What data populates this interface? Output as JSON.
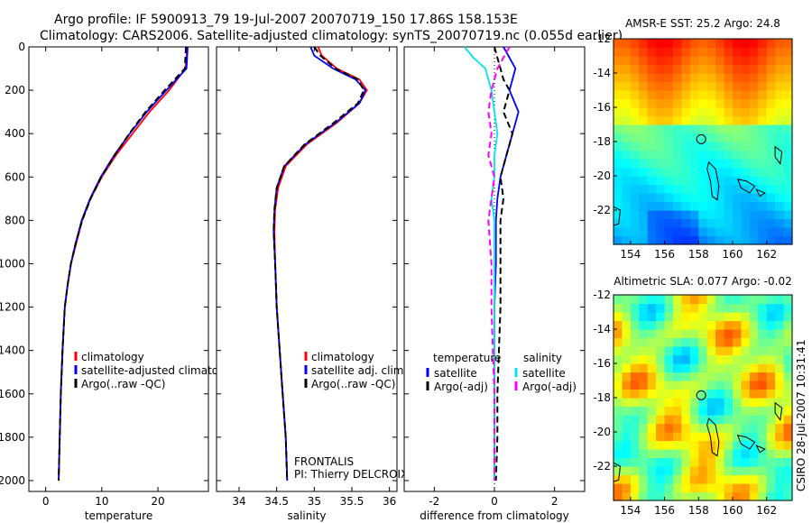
{
  "header": {
    "line1": "Argo profile: IF 5900913_79 19-Jul-2007 20070719_150 17.86S 158.153E",
    "line2": "Climatology: CARS2006. Satellite-adjusted climatology: synTS_20070719.nc (0.055d earlier)"
  },
  "side_note": "CSIRO 28-Jul-2007 10:31:41",
  "colors": {
    "red": "#ff0000",
    "blue": "#0000ff",
    "black": "#000000",
    "cyan": "#00e5ee",
    "magenta": "#ff00ff"
  },
  "chart_data": [
    {
      "type": "line",
      "xlabel": "temperature",
      "xlim": [
        -3,
        29
      ],
      "ylim": [
        0,
        2050
      ],
      "y_reversed": true,
      "xticks": [
        0,
        10,
        20
      ],
      "yticks": [
        0,
        200,
        400,
        600,
        800,
        1000,
        1200,
        1400,
        1600,
        1800,
        2000
      ],
      "legend": [
        "climatology",
        "satellite-adjusted climatology",
        "Argo(..raw -QC)"
      ],
      "series": [
        {
          "name": "climatology",
          "color": "red",
          "dash": "solid",
          "x": [
            25.2,
            25.1,
            24.9,
            22.0,
            18.5,
            15.5,
            12.5,
            10.0,
            8.0,
            6.5,
            5.5,
            4.5,
            3.9,
            3.4,
            3.0,
            2.7,
            2.5,
            2.3
          ],
          "y": [
            0,
            50,
            100,
            200,
            300,
            400,
            500,
            600,
            700,
            800,
            900,
            1000,
            1100,
            1200,
            1400,
            1600,
            1800,
            2000
          ]
        },
        {
          "name": "satellite-adjusted climatology",
          "color": "blue",
          "dash": "solid",
          "x": [
            25.3,
            25.2,
            25.1,
            21.5,
            18.0,
            15.0,
            12.2,
            9.8,
            7.9,
            6.4,
            5.4,
            4.5,
            3.9,
            3.4,
            3.0,
            2.7,
            2.5,
            2.3
          ],
          "y": [
            0,
            50,
            100,
            200,
            300,
            400,
            500,
            600,
            700,
            800,
            900,
            1000,
            1100,
            1200,
            1400,
            1600,
            1800,
            2000
          ]
        },
        {
          "name": "Argo(..raw -QC)",
          "color": "black",
          "dash": "dash",
          "x": [
            25.0,
            24.9,
            24.8,
            21.2,
            17.8,
            14.9,
            12.3,
            9.9,
            8.0,
            6.5,
            5.4,
            4.5,
            3.9,
            3.4,
            3.0,
            2.7,
            2.5,
            2.3
          ],
          "y": [
            0,
            50,
            100,
            200,
            300,
            400,
            500,
            600,
            700,
            800,
            900,
            1000,
            1100,
            1200,
            1400,
            1600,
            1800,
            2000
          ]
        }
      ]
    },
    {
      "type": "line",
      "xlabel": "salinity",
      "xlim": [
        33.7,
        36.1
      ],
      "ylim": [
        0,
        2050
      ],
      "y_reversed": true,
      "xticks": [
        34,
        34.5,
        35,
        35.5,
        36
      ],
      "legend": [
        "climatology",
        "satellite adj. clim.",
        "Argo(..raw -QC)"
      ],
      "annotations": [
        "FRONTALIS",
        "PI: Thierry DELCROIX"
      ],
      "series": [
        {
          "name": "climatology",
          "color": "red",
          "dash": "solid",
          "x": [
            35.05,
            35.1,
            35.3,
            35.6,
            35.7,
            35.6,
            35.3,
            34.9,
            34.62,
            34.52,
            34.48,
            34.47,
            34.48,
            34.5,
            34.54,
            34.58,
            34.62,
            34.64
          ],
          "y": [
            0,
            40,
            100,
            150,
            200,
            260,
            350,
            450,
            550,
            650,
            750,
            850,
            1000,
            1200,
            1400,
            1600,
            1800,
            2000
          ]
        },
        {
          "name": "satellite adj. clim.",
          "color": "blue",
          "dash": "solid",
          "x": [
            34.95,
            35.0,
            35.25,
            35.55,
            35.68,
            35.6,
            35.28,
            34.88,
            34.6,
            34.5,
            34.47,
            34.46,
            34.48,
            34.5,
            34.54,
            34.58,
            34.62,
            34.64
          ],
          "y": [
            0,
            40,
            100,
            150,
            200,
            260,
            350,
            450,
            550,
            650,
            750,
            850,
            1000,
            1200,
            1400,
            1600,
            1800,
            2000
          ]
        },
        {
          "name": "Argo(..raw -QC)",
          "color": "black",
          "dash": "dash",
          "x": [
            35.0,
            35.08,
            35.28,
            35.58,
            35.66,
            35.58,
            35.26,
            34.87,
            34.6,
            34.5,
            34.47,
            34.46,
            34.48,
            34.5,
            34.54,
            34.58,
            34.62,
            34.64
          ],
          "y": [
            0,
            40,
            100,
            150,
            200,
            260,
            350,
            450,
            550,
            650,
            750,
            850,
            1000,
            1200,
            1400,
            1600,
            1800,
            2000
          ]
        }
      ]
    },
    {
      "type": "line",
      "xlabel": "difference from climatology",
      "xlim": [
        -3,
        3
      ],
      "ylim": [
        0,
        2050
      ],
      "y_reversed": true,
      "xticks": [
        -2,
        0,
        2
      ],
      "legend_columns": [
        {
          "title": "temperature",
          "items": [
            "satellite",
            "Argo(-adj)"
          ]
        },
        {
          "title": "salinity",
          "items": [
            "satellite",
            "Argo(-adj)"
          ]
        }
      ],
      "series": [
        {
          "name": "satellite",
          "quantity": "temperature",
          "color": "blue",
          "dash": "solid",
          "x": [
            0.3,
            0.5,
            0.7,
            0.6,
            0.5,
            0.8,
            0.6,
            0.4,
            0.2,
            0.1,
            0.05,
            0.05,
            0.0,
            0.0,
            0.0,
            0.0,
            0.0
          ],
          "y": [
            0,
            50,
            100,
            150,
            200,
            300,
            400,
            500,
            600,
            700,
            800,
            1000,
            1200,
            1400,
            1600,
            1800,
            2000
          ]
        },
        {
          "name": "Argo(-adj)",
          "quantity": "temperature",
          "color": "black",
          "dash": "dash",
          "x": [
            0.0,
            0.1,
            0.2,
            0.3,
            0.5,
            0.3,
            0.6,
            0.4,
            0.2,
            0.3,
            0.2,
            0.2,
            0.2,
            0.15,
            0.1,
            0.1,
            0.05
          ],
          "y": [
            0,
            50,
            100,
            150,
            200,
            300,
            400,
            500,
            600,
            700,
            800,
            1000,
            1200,
            1400,
            1600,
            1800,
            2000
          ]
        },
        {
          "name": "satellite",
          "quantity": "salinity",
          "color": "cyan",
          "dash": "solid",
          "x": [
            -1.0,
            -0.7,
            -0.3,
            -0.2,
            -0.1,
            0.0,
            0.1,
            0.0,
            0.0,
            -0.1,
            0.0,
            0.0,
            0.0,
            0.0,
            0.0,
            0.0,
            0.0
          ],
          "y": [
            0,
            50,
            100,
            150,
            200,
            300,
            400,
            500,
            600,
            700,
            800,
            1000,
            1200,
            1400,
            1600,
            1800,
            2000
          ]
        },
        {
          "name": "Argo(-adj)",
          "quantity": "salinity",
          "color": "magenta",
          "dash": "dash",
          "x": [
            0.5,
            0.3,
            0.1,
            0.0,
            -0.1,
            -0.2,
            -0.1,
            -0.2,
            0.0,
            -0.1,
            -0.2,
            -0.1,
            -0.1,
            -0.05,
            0.0,
            0.0,
            0.0
          ],
          "y": [
            0,
            50,
            100,
            150,
            200,
            300,
            400,
            500,
            600,
            700,
            800,
            1000,
            1200,
            1400,
            1600,
            1800,
            2000
          ]
        }
      ]
    },
    {
      "type": "heatmap",
      "title": "AMSR-E SST: 25.2 Argo: 24.8",
      "xlim": [
        153,
        163.5
      ],
      "ylim": [
        -24,
        -12
      ],
      "xticks": [
        154,
        156,
        158,
        160,
        162
      ],
      "yticks": [
        -12,
        -14,
        -16,
        -18,
        -20,
        -22
      ],
      "marker": {
        "lon": 158.153,
        "lat": -17.86
      },
      "colormap": "jet"
    },
    {
      "type": "heatmap",
      "title": "Altimetric SLA: 0.077 Argo: -0.02",
      "xlim": [
        153,
        163.5
      ],
      "ylim": [
        -24,
        -12
      ],
      "xticks": [
        154,
        156,
        158,
        160,
        162
      ],
      "yticks": [
        -12,
        -14,
        -16,
        -18,
        -20,
        -22
      ],
      "marker": {
        "lon": 158.153,
        "lat": -17.86
      },
      "colormap": "jet"
    }
  ]
}
